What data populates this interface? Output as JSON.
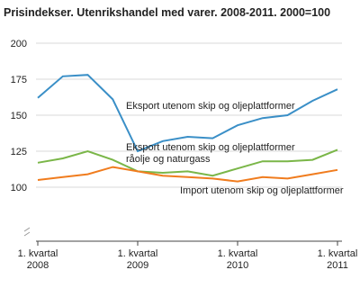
{
  "chart_data": {
    "type": "line",
    "title": "Prisindekser. Utenrikshandel med varer. 2008-2011. 2000=100",
    "categories": [
      "1. kvartal\n2008",
      null,
      null,
      null,
      "1. kvartal\n2009",
      null,
      null,
      null,
      "1. kvartal\n2010",
      null,
      null,
      null,
      "1. kvartal\n2011"
    ],
    "series": [
      {
        "name": "Eksport utenom skip og oljeplattformer",
        "color": "#3a8fc7",
        "values": [
          162,
          177,
          178,
          161,
          125,
          132,
          135,
          134,
          143,
          148,
          150,
          160,
          168
        ]
      },
      {
        "name": "Eksport utenom skip og oljeplattformer\nråolje og naturgass",
        "color": "#7ab648",
        "values": [
          117,
          120,
          125,
          119,
          111,
          110,
          111,
          108,
          113,
          118,
          118,
          119,
          126
        ]
      },
      {
        "name": "Import utenom skip og oljeplattformer",
        "color": "#f07c1e",
        "values": [
          105,
          107,
          109,
          114,
          111,
          108,
          107,
          106,
          104,
          107,
          106,
          109,
          112
        ]
      }
    ],
    "ylim": [
      62.5,
      200
    ],
    "yticks": [
      100,
      125,
      150,
      175,
      200
    ],
    "grid": true
  }
}
